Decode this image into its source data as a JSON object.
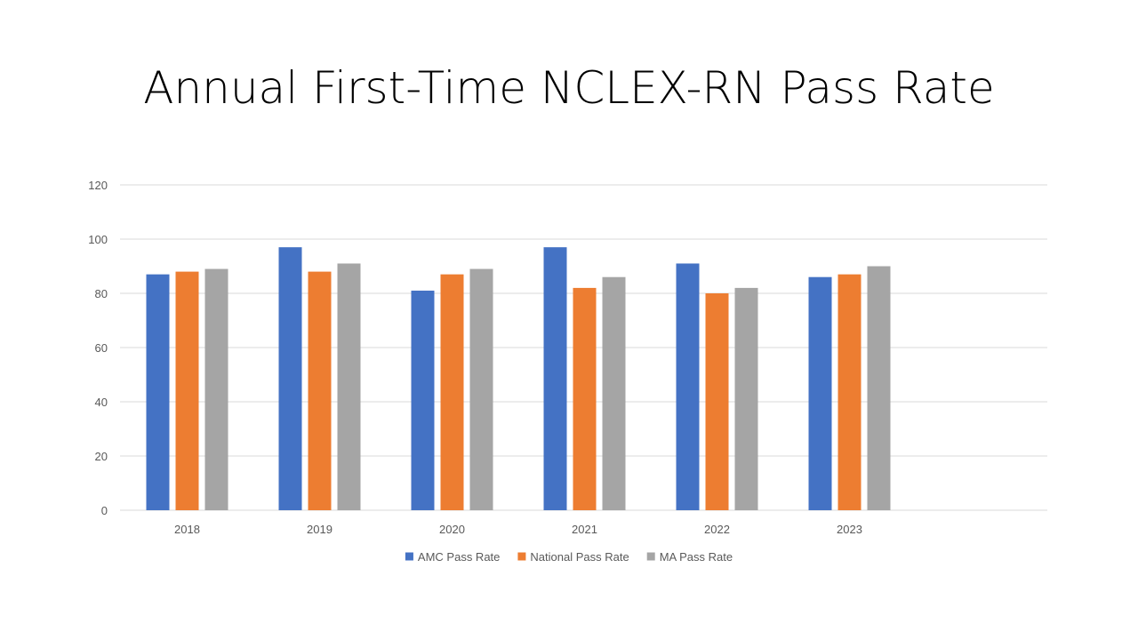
{
  "slide": {
    "title": "Annual First-Time NCLEX-RN Pass Rate"
  },
  "chart_data": {
    "type": "bar",
    "title": "",
    "xlabel": "",
    "ylabel": "",
    "categories": [
      "2018",
      "2019",
      "2020",
      "2021",
      "2022",
      "2023"
    ],
    "series": [
      {
        "name": "AMC Pass Rate",
        "color": "#4472C4",
        "values": [
          87,
          97,
          81,
          97,
          91,
          86
        ]
      },
      {
        "name": "National Pass Rate",
        "color": "#ED7D31",
        "values": [
          88,
          88,
          87,
          82,
          80,
          87
        ]
      },
      {
        "name": "MA Pass Rate",
        "color": "#A5A5A5",
        "values": [
          89,
          91,
          89,
          86,
          82,
          90
        ]
      }
    ],
    "ylim": [
      0,
      120
    ],
    "yticks": [
      0,
      20,
      40,
      60,
      80,
      100,
      120
    ],
    "grid": true,
    "legend": "bottom"
  }
}
